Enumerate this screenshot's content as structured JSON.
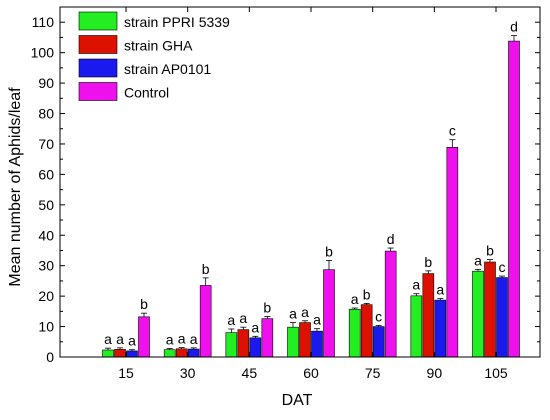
{
  "chart_data": {
    "type": "bar",
    "xlabel": "DAT",
    "ylabel": "Mean number of Aphids/leaf",
    "ylim": [
      0,
      115
    ],
    "yticks": [
      0,
      10,
      20,
      30,
      40,
      50,
      60,
      70,
      80,
      90,
      100,
      110
    ],
    "categories": [
      "15",
      "30",
      "45",
      "60",
      "75",
      "90",
      "105"
    ],
    "legend_position": "top-left",
    "series": [
      {
        "name": "strain PPRI 5339",
        "color": "#22ee22",
        "values": [
          2.3,
          2.4,
          8.0,
          9.8,
          15.7,
          20.1,
          28.2
        ],
        "errors": [
          0.6,
          0.4,
          1.2,
          1.5,
          0.4,
          0.7,
          0.6
        ],
        "sig": [
          "a",
          "a",
          "a",
          "a",
          "a",
          "a",
          "a"
        ]
      },
      {
        "name": "strain GHA",
        "color": "#dd1100",
        "values": [
          2.5,
          2.7,
          9.0,
          11.3,
          17.2,
          27.4,
          31.2
        ],
        "errors": [
          0.5,
          0.4,
          0.8,
          0.6,
          0.4,
          0.9,
          0.8
        ],
        "sig": [
          "a",
          "a",
          "a",
          "a",
          "b",
          "b",
          "b"
        ]
      },
      {
        "name": "strain AP0101",
        "color": "#1a1aee",
        "values": [
          2.0,
          2.6,
          6.3,
          8.5,
          10.0,
          18.7,
          26.1
        ],
        "errors": [
          0.4,
          0.4,
          0.5,
          0.8,
          0.4,
          0.5,
          0.5
        ],
        "sig": [
          "a",
          "a",
          "a",
          "a",
          "c",
          "a",
          "c"
        ]
      },
      {
        "name": "Control",
        "color": "#ee11ee",
        "values": [
          13.2,
          23.5,
          12.6,
          28.7,
          34.8,
          68.9,
          103.8
        ],
        "errors": [
          1.2,
          2.5,
          0.7,
          3.0,
          1.0,
          2.5,
          1.8
        ],
        "sig": [
          "b",
          "b",
          "b",
          "b",
          "d",
          "c",
          "d"
        ]
      }
    ]
  }
}
